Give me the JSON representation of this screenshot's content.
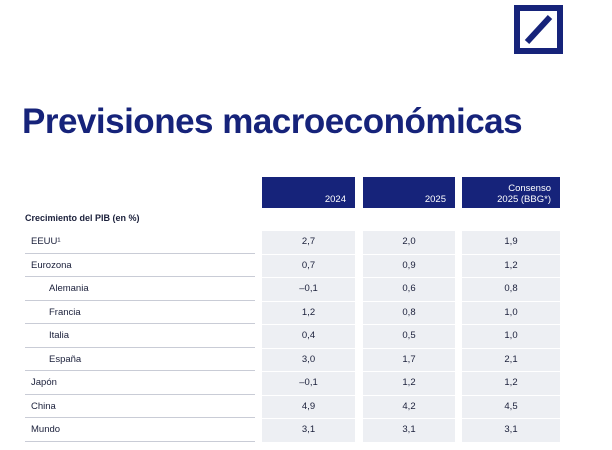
{
  "title": "Previsiones macroeconómicas",
  "table": {
    "columns": [
      [
        "2024"
      ],
      [
        "2025"
      ],
      [
        "Consenso",
        "2025 (BBG*)"
      ]
    ],
    "section": "Crecimiento del PIB (en %)",
    "rows": [
      {
        "label": "EEUU¹",
        "values": [
          "2,7",
          "2,0",
          "1,9"
        ]
      },
      {
        "label": "Eurozona",
        "values": [
          "0,7",
          "0,9",
          "1,2"
        ]
      },
      {
        "label": "Alemania",
        "sub": true,
        "values": [
          "–0,1",
          "0,6",
          "0,8"
        ]
      },
      {
        "label": "Francia",
        "sub": true,
        "values": [
          "1,2",
          "0,8",
          "1,0"
        ]
      },
      {
        "label": "Italia",
        "sub": true,
        "values": [
          "0,4",
          "0,5",
          "1,0"
        ]
      },
      {
        "label": "España",
        "sub": true,
        "values": [
          "3,0",
          "1,7",
          "2,1"
        ]
      },
      {
        "label": "Japón",
        "values": [
          "–0,1",
          "1,2",
          "1,2"
        ]
      },
      {
        "label": "China",
        "values": [
          "4,9",
          "4,2",
          "4,5"
        ]
      },
      {
        "label": "Mundo",
        "values": [
          "3,1",
          "3,1",
          "3,1"
        ]
      }
    ]
  }
}
